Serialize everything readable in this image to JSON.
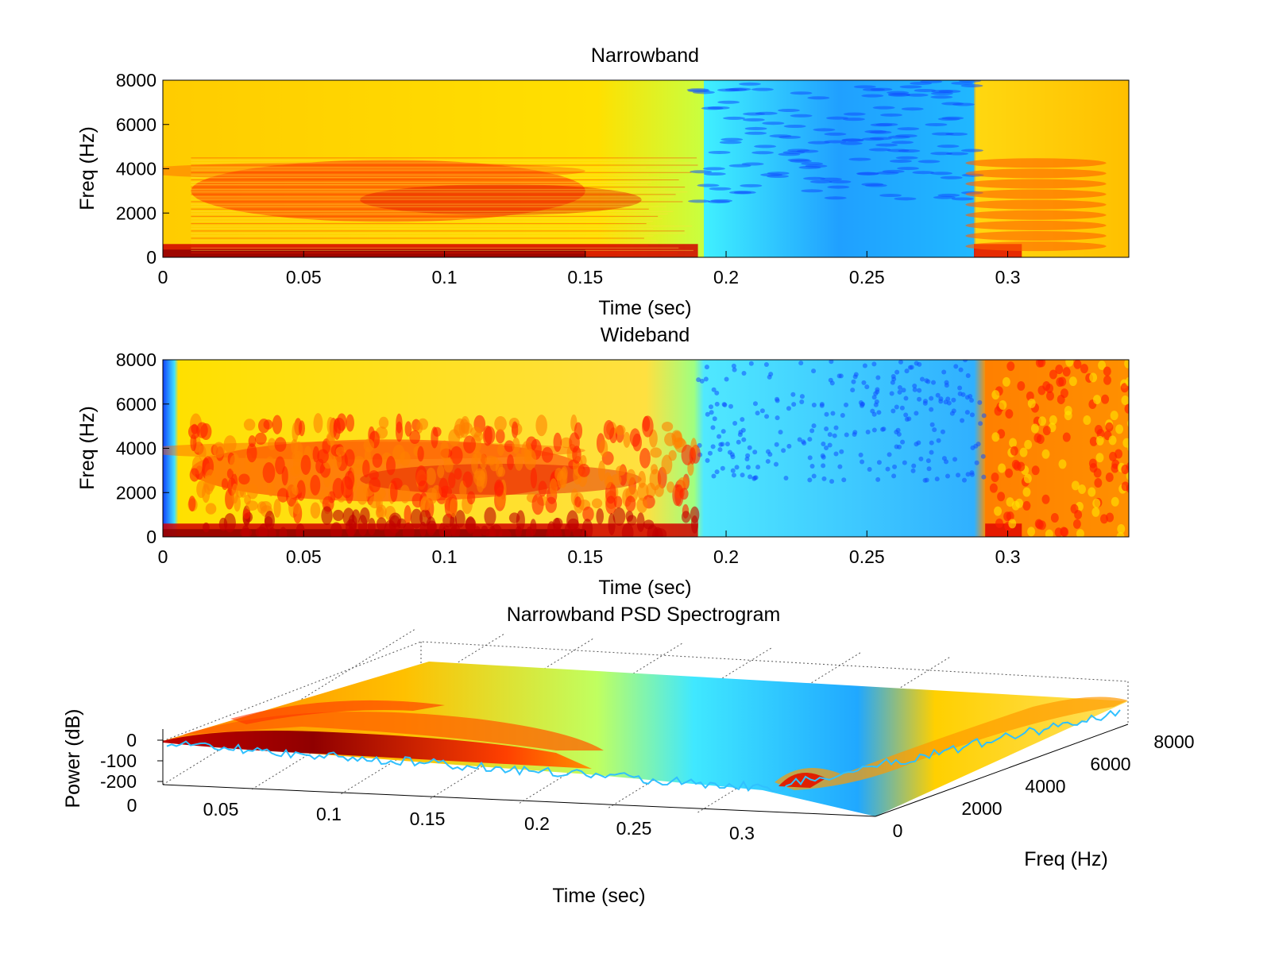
{
  "colors": {
    "jet_scale": [
      "#00008f",
      "#0000ff",
      "#0080ff",
      "#00ffff",
      "#80ff80",
      "#ffff00",
      "#ff8000",
      "#ff0000",
      "#800000"
    ],
    "axis": "#000000",
    "background": "#ffffff"
  },
  "chart_data": [
    {
      "type": "heatmap",
      "title": "Narrowband",
      "xlabel": "Time (sec)",
      "ylabel": "Freq (Hz)",
      "xlim": [
        0,
        0.343
      ],
      "ylim": [
        0,
        8000
      ],
      "xticks": [
        "0",
        "0.05",
        "0.1",
        "0.15",
        "0.2",
        "0.25",
        "0.3"
      ],
      "yticks": [
        "0",
        "2000",
        "4000",
        "6000",
        "8000"
      ],
      "colormap": "jet",
      "features": {
        "voiced_segment_sec": [
          0.0,
          0.19
        ],
        "silence_sec": [
          0.19,
          0.288
        ],
        "burst_onset_sec": 0.288,
        "strong_band_hz": [
          0,
          500
        ],
        "formant_bands_hz": [
          2500,
          3800
        ]
      }
    },
    {
      "type": "heatmap",
      "title": "Wideband",
      "xlabel": "Time (sec)",
      "ylabel": "Freq (Hz)",
      "xlim": [
        0,
        0.343
      ],
      "ylim": [
        0,
        8000
      ],
      "xticks": [
        "0",
        "0.05",
        "0.1",
        "0.15",
        "0.2",
        "0.25",
        "0.3"
      ],
      "yticks": [
        "0",
        "2000",
        "4000",
        "6000",
        "8000"
      ],
      "colormap": "jet",
      "features": {
        "leading_gap_sec": [
          0.0,
          0.005
        ],
        "voiced_segment_sec": [
          0.005,
          0.19
        ],
        "silence_sec": [
          0.19,
          0.292
        ],
        "burst_onset_sec": 0.292
      }
    },
    {
      "type": "surface",
      "title": "Narrowband PSD Spectrogram",
      "xlabel": "Time (sec)",
      "ylabel": "Freq (Hz)",
      "zlabel": "Power (dB)",
      "xticks": [
        "0",
        "0.05",
        "0.1",
        "0.15",
        "0.2",
        "0.25",
        "0.3"
      ],
      "yticks": [
        "0",
        "2000",
        "4000",
        "6000",
        "8000"
      ],
      "zticks": [
        "-200",
        "-100",
        "0"
      ],
      "xlim": [
        0,
        0.343
      ],
      "ylim": [
        0,
        8000
      ],
      "colormap": "jet"
    }
  ]
}
